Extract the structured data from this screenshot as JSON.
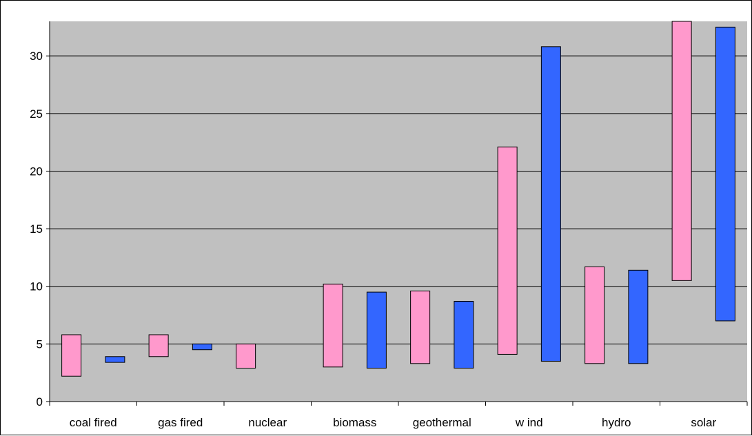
{
  "chart_data": {
    "type": "bar",
    "subtype": "floating-range",
    "title": "",
    "xlabel": "",
    "ylabel": "",
    "ylim": [
      0,
      33
    ],
    "yticks": [
      0,
      5,
      10,
      15,
      20,
      25,
      30
    ],
    "grid": true,
    "legend": "none",
    "plot_background": "#c0c0c0",
    "categories": [
      "coal fired",
      "gas fired",
      "nuclear",
      "biomass",
      "geothermal",
      "w ind",
      "hydro",
      "solar"
    ],
    "series": [
      {
        "color": "#ff99cc",
        "ranges": [
          [
            2.2,
            5.8
          ],
          [
            3.9,
            5.8
          ],
          [
            2.9,
            5.0
          ],
          [
            3.0,
            10.2
          ],
          [
            3.3,
            9.6
          ],
          [
            4.1,
            22.1
          ],
          [
            3.3,
            11.7
          ],
          [
            10.5,
            33.0
          ]
        ]
      },
      {
        "color": "#3366ff",
        "ranges": [
          [
            3.4,
            3.9
          ],
          [
            4.5,
            5.0
          ],
          null,
          [
            2.9,
            9.5
          ],
          [
            2.9,
            8.7
          ],
          [
            3.5,
            30.8
          ],
          [
            3.3,
            11.4
          ],
          [
            7.0,
            32.5
          ]
        ]
      }
    ]
  }
}
